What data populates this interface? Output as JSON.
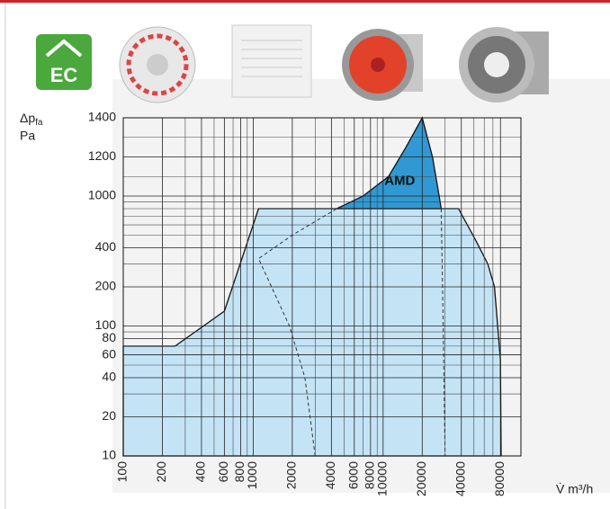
{
  "badge": "EC",
  "chart_data": {
    "type": "area",
    "ylabel": {
      "symbol": "Δp",
      "sub": "fa",
      "unit": "Pa"
    },
    "xlabel": "V̇ m³/h",
    "xscale": "log",
    "yscale": "log-linear",
    "ybreak": 1000,
    "xlim": [
      100,
      115000
    ],
    "ylim": [
      10,
      1400
    ],
    "xticks": [
      100,
      200,
      400,
      600,
      800,
      1000,
      2000,
      4000,
      6000,
      8000,
      10000,
      20000,
      40000,
      80000
    ],
    "xminor": [
      300,
      500,
      700,
      900,
      3000,
      5000,
      7000,
      9000,
      30000,
      50000,
      60000,
      70000
    ],
    "yticks": [
      10,
      20,
      40,
      60,
      80,
      100,
      200,
      400,
      1000,
      1200,
      1400
    ],
    "yminor": [
      30,
      50,
      70,
      90,
      300,
      500,
      600,
      700,
      800,
      900,
      1100,
      1300
    ],
    "grid": true,
    "series": [
      {
        "color": "#bfe2f6",
        "x": [
          100,
          250,
          600,
          1100,
          38000,
          52000,
          64000,
          72000,
          80000,
          81000
        ],
        "values": [
          70,
          70,
          130,
          800,
          800,
          450,
          300,
          200,
          55,
          10
        ]
      },
      {
        "name": "AMD",
        "color": "#1b8fd0",
        "closed": true,
        "x": [
          4400,
          7000,
          11000,
          15000,
          20000,
          24000,
          27000,
          28000
        ],
        "values": [
          800,
          1000,
          1100,
          1250,
          1400,
          1200,
          1000,
          800
        ]
      },
      {
        "color": "#333333",
        "dashed": true,
        "x": [
          3000,
          2500,
          1900,
          1100,
          2000,
          4400
        ],
        "values": [
          10,
          40,
          100,
          330,
          500,
          800
        ]
      },
      {
        "color": "#333333",
        "dashed": true,
        "x": [
          28000,
          29000,
          30000
        ],
        "values": [
          800,
          100,
          10
        ]
      }
    ]
  }
}
